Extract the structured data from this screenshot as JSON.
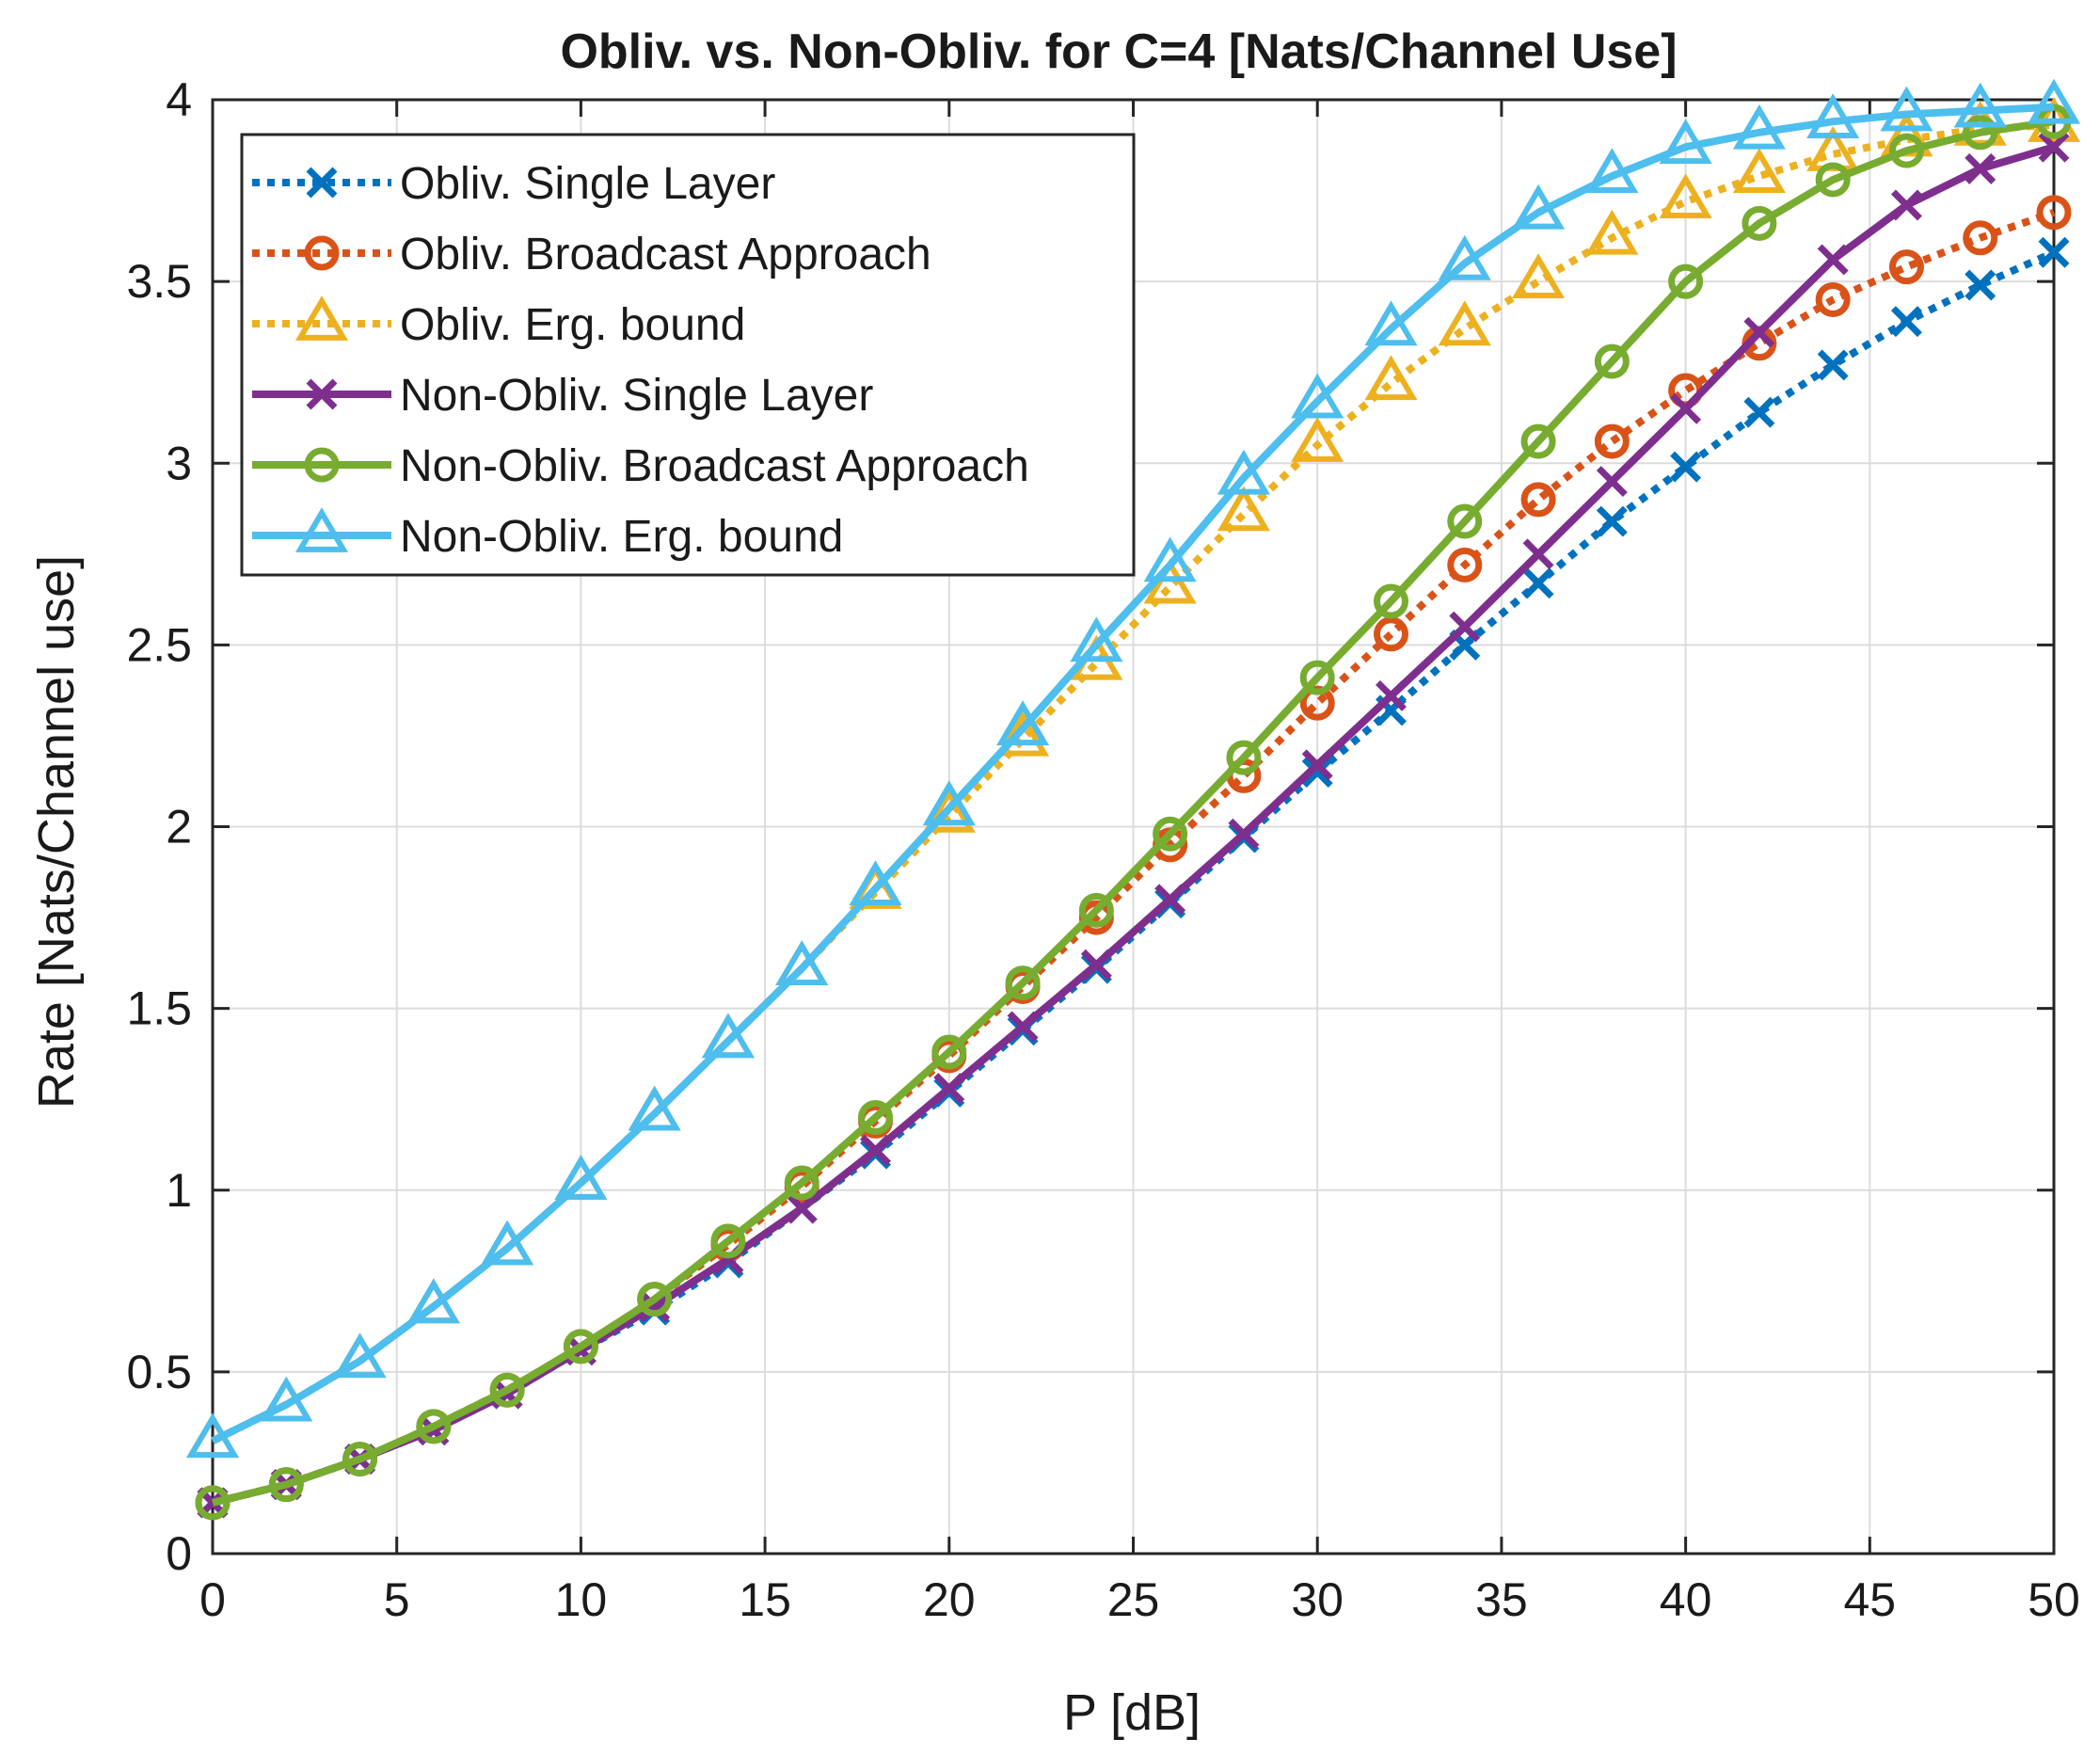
{
  "chart_data": {
    "type": "line",
    "title": "Obliv. vs. Non-Obliv. for C=4 [Nats/Channel Use]",
    "xlabel": "P [dB]",
    "ylabel": "Rate [Nats/Channel use]",
    "xlim": [
      0,
      50
    ],
    "ylim": [
      0,
      4
    ],
    "xticks": [
      0,
      5,
      10,
      15,
      20,
      25,
      30,
      35,
      40,
      45,
      50
    ],
    "yticks": [
      0,
      0.5,
      1,
      1.5,
      2,
      2.5,
      3,
      3.5,
      4
    ],
    "xtick_labels": [
      "0",
      "5",
      "10",
      "15",
      "20",
      "25",
      "30",
      "35",
      "40",
      "45",
      "50"
    ],
    "ytick_labels": [
      "0",
      "0.5",
      "1",
      "1.5",
      "2",
      "2.5",
      "3",
      "3.5",
      "4"
    ],
    "grid": true,
    "legend_position": "top-left",
    "x": [
      0,
      2,
      4,
      6,
      8,
      10,
      12,
      14,
      16,
      18,
      20,
      22,
      24,
      26,
      28,
      30,
      32,
      34,
      36,
      38,
      40,
      42,
      44,
      46,
      48,
      50
    ],
    "series": [
      {
        "name": "Obliv. Single Layer",
        "color": "#0072BD",
        "line": "dotted",
        "marker": "x",
        "values": [
          0.14,
          0.19,
          0.26,
          0.34,
          0.44,
          0.56,
          0.67,
          0.8,
          0.95,
          1.1,
          1.27,
          1.44,
          1.61,
          1.79,
          1.97,
          2.15,
          2.32,
          2.5,
          2.67,
          2.84,
          2.99,
          3.14,
          3.27,
          3.39,
          3.49,
          3.58
        ]
      },
      {
        "name": "Obliv. Broadcast Approach",
        "color": "#D95319",
        "line": "dotted",
        "marker": "o",
        "values": [
          0.14,
          0.19,
          0.26,
          0.35,
          0.45,
          0.57,
          0.7,
          0.85,
          1.01,
          1.19,
          1.37,
          1.56,
          1.75,
          1.95,
          2.14,
          2.34,
          2.53,
          2.72,
          2.9,
          3.06,
          3.2,
          3.33,
          3.45,
          3.54,
          3.62,
          3.69
        ]
      },
      {
        "name": "Obliv. Erg. bound",
        "color": "#EDB120",
        "line": "dotted",
        "marker": "triangle",
        "values": [
          0.31,
          0.41,
          0.53,
          0.68,
          0.84,
          1.02,
          1.21,
          1.41,
          1.61,
          1.82,
          2.03,
          2.24,
          2.45,
          2.66,
          2.86,
          3.05,
          3.22,
          3.37,
          3.5,
          3.62,
          3.72,
          3.79,
          3.85,
          3.89,
          3.92,
          3.93
        ]
      },
      {
        "name": "Non-Obliv. Single Layer",
        "color": "#7E2F8E",
        "line": "solid",
        "marker": "x",
        "values": [
          0.14,
          0.19,
          0.26,
          0.34,
          0.44,
          0.56,
          0.68,
          0.81,
          0.95,
          1.11,
          1.28,
          1.45,
          1.62,
          1.8,
          1.98,
          2.17,
          2.36,
          2.55,
          2.75,
          2.95,
          3.15,
          3.36,
          3.56,
          3.71,
          3.81,
          3.87
        ]
      },
      {
        "name": "Non-Obliv. Broadcast Approach",
        "color": "#77AC30",
        "line": "solid",
        "marker": "o",
        "values": [
          0.14,
          0.19,
          0.26,
          0.35,
          0.45,
          0.57,
          0.7,
          0.86,
          1.02,
          1.2,
          1.38,
          1.57,
          1.77,
          1.98,
          2.19,
          2.41,
          2.62,
          2.84,
          3.06,
          3.28,
          3.5,
          3.66,
          3.78,
          3.86,
          3.91,
          3.94
        ]
      },
      {
        "name": "Non-Obliv. Erg. bound",
        "color": "#4DBEEE",
        "line": "solid",
        "marker": "triangle",
        "values": [
          0.31,
          0.41,
          0.53,
          0.68,
          0.84,
          1.02,
          1.21,
          1.41,
          1.61,
          1.83,
          2.05,
          2.27,
          2.5,
          2.72,
          2.96,
          3.17,
          3.37,
          3.55,
          3.69,
          3.79,
          3.87,
          3.91,
          3.94,
          3.96,
          3.97,
          3.98
        ]
      }
    ]
  }
}
